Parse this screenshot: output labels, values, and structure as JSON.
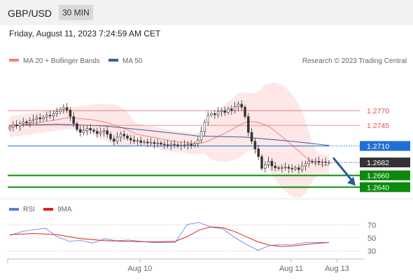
{
  "header": {
    "symbol": "GBP/USD",
    "timeframe": "30 MIN",
    "datetime": "Friday, August 11, 2023 7:24:59 AM CET"
  },
  "colors": {
    "bands": "#f08080",
    "bands_fill": "#fde4e4",
    "ma50": "#3b5e9a",
    "candle": "#333333",
    "resistance": "#e05050",
    "pivot": "#1f6fd8",
    "support": "#0b8a0b",
    "current": "#333333",
    "rsi": "#5b7fd8",
    "rsi_ma": "#e02020",
    "arrow": "#2a5ba0"
  },
  "chart_data": [
    {
      "type": "candlestick",
      "legend": [
        {
          "name": "MA 20 + Bollinger Bands",
          "color": "#f08080"
        },
        {
          "name": "MA 50",
          "color": "#3b5e9a"
        }
      ],
      "legend_placement": "top-left",
      "watermark": "Research © 2023 Trading Central",
      "x_ticks": [
        "Aug 10",
        "Aug 11",
        "Aug 13"
      ],
      "levels": [
        {
          "value": 1.277,
          "label": "1.2770",
          "kind": "resistance"
        },
        {
          "value": 1.2745,
          "label": "1.2745",
          "kind": "resistance"
        },
        {
          "value": 1.271,
          "label": "1.2710",
          "kind": "pivot"
        },
        {
          "value": 1.2682,
          "label": "1.2682",
          "kind": "current"
        },
        {
          "value": 1.266,
          "label": "1.2660",
          "kind": "support"
        },
        {
          "value": 1.264,
          "label": "1.2640",
          "kind": "support"
        }
      ],
      "ylim": [
        1.2625,
        1.2845
      ],
      "closes": [
        1.2742,
        1.2746,
        1.2744,
        1.2748,
        1.2751,
        1.2749,
        1.2753,
        1.2755,
        1.2758,
        1.2756,
        1.2759,
        1.2762,
        1.2761,
        1.2765,
        1.2768,
        1.2772,
        1.2775,
        1.2771,
        1.276,
        1.2748,
        1.2738,
        1.2733,
        1.2736,
        1.274,
        1.2737,
        1.2735,
        1.2731,
        1.2734,
        1.2736,
        1.273,
        1.2722,
        1.2718,
        1.2725,
        1.273,
        1.2727,
        1.2723,
        1.272,
        1.2718,
        1.2719,
        1.2716,
        1.2717,
        1.2715,
        1.2716,
        1.2714,
        1.2715,
        1.2713,
        1.2712,
        1.2711,
        1.2713,
        1.2712,
        1.271,
        1.2711,
        1.2712,
        1.2713,
        1.2711,
        1.2714,
        1.272,
        1.2735,
        1.275,
        1.2762,
        1.2765,
        1.2763,
        1.2768,
        1.277,
        1.2767,
        1.2773,
        1.277,
        1.2777,
        1.2781,
        1.2776,
        1.276,
        1.2733,
        1.2718,
        1.2705,
        1.2692,
        1.2672,
        1.2678,
        1.2684,
        1.2676,
        1.2673,
        1.2672,
        1.2673,
        1.2674,
        1.2672,
        1.2671,
        1.2673,
        1.267,
        1.2676,
        1.268,
        1.2684,
        1.2683,
        1.2684,
        1.2682,
        1.2683,
        1.2682,
        1.2682
      ],
      "ma50_x": [
        0,
        40,
        80,
        120,
        160,
        200,
        240,
        272
      ],
      "ma50": [
        1.2745,
        1.2747,
        1.2744,
        1.2736,
        1.2727,
        1.2725,
        1.2718,
        1.2711
      ],
      "forecast_target": 1.264,
      "x_tick_at": [
        55,
        119,
        136
      ]
    },
    {
      "type": "line",
      "legend": [
        {
          "name": "RSI",
          "color": "#5b7fd8"
        },
        {
          "name": "9MA",
          "color": "#e02020"
        }
      ],
      "y_ticks": [
        70,
        50,
        30
      ],
      "ylim": [
        20,
        80
      ],
      "rsi_x": [
        0,
        5,
        10,
        15,
        20,
        25,
        30,
        35,
        40,
        45,
        50,
        55,
        60,
        65,
        70,
        75,
        80,
        85,
        90,
        95,
        100,
        105,
        110,
        115,
        120,
        125,
        130,
        135
      ],
      "rsi": [
        54,
        57,
        61,
        64,
        52,
        46,
        48,
        45,
        46,
        44,
        46,
        45,
        44,
        45,
        46,
        68,
        72,
        66,
        64,
        52,
        42,
        34,
        36,
        38,
        39,
        43,
        44,
        43
      ],
      "rsi_ma_x": [
        0,
        10,
        20,
        30,
        40,
        50,
        60,
        70,
        75,
        80,
        85,
        90,
        95,
        100,
        105,
        110,
        115,
        120,
        125,
        130,
        135
      ],
      "rsi_ma": [
        55,
        57,
        55,
        49,
        46,
        45,
        44,
        45,
        52,
        62,
        67,
        66,
        60,
        52,
        44,
        39,
        37,
        38,
        40,
        42,
        43
      ]
    }
  ]
}
